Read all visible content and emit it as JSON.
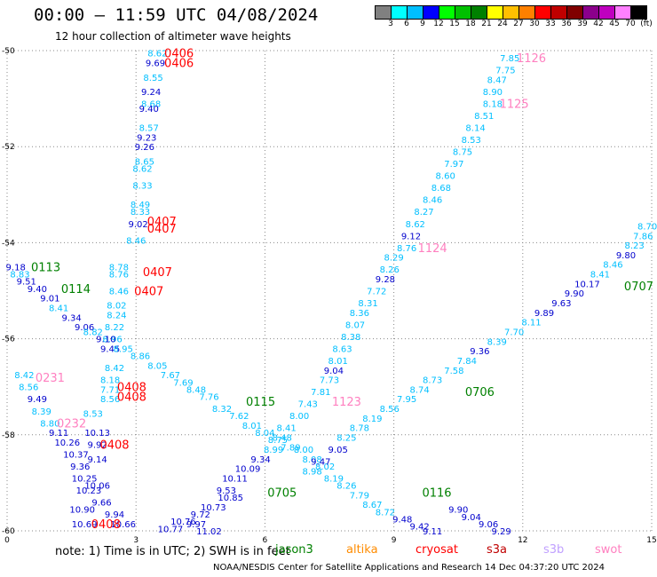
{
  "title": "00:00 – 11:59 UTC 04/08/2024",
  "subtitle": "12 hour collection of altimeter wave heights",
  "colorbar": {
    "unit_label": "(ft)",
    "ticks": [
      "3",
      "6",
      "9",
      "12",
      "15",
      "18",
      "21",
      "24",
      "27",
      "30",
      "33",
      "36",
      "39",
      "42",
      "45",
      "70"
    ],
    "colors": [
      "#808080",
      "#00ffff",
      "#00bfff",
      "#0000ff",
      "#00ff00",
      "#00c000",
      "#008000",
      "#ffff00",
      "#ffbf00",
      "#ff8000",
      "#ff0000",
      "#c00000",
      "#800000",
      "#8b008b",
      "#bf00bf",
      "#ff80ff",
      "#000000"
    ]
  },
  "footer": {
    "note": "note:  1) Time is in UTC; 2) SWH is in feet",
    "credit": "NOAA/NESDIS Center for Satellite Applications and Research    14 Dec 04:37:20 UTC 2024",
    "satellites": [
      {
        "name": "jason3",
        "color": "#008000"
      },
      {
        "name": "altika",
        "color": "#ff8c00"
      },
      {
        "name": "cryosat",
        "color": "#ff0000"
      },
      {
        "name": "s3a",
        "color": "#c00000"
      },
      {
        "name": "s3b",
        "color": "#c0a0ff"
      },
      {
        "name": "swot",
        "color": "#ff80c0"
      }
    ]
  },
  "chart_data": {
    "type": "scatter",
    "title": "00:00 – 11:59 UTC 04/08/2024",
    "subtitle": "12 hour collection of altimeter wave heights",
    "xlim": [
      0,
      15
    ],
    "ylim": [
      -60,
      -50
    ],
    "x_ticks": [
      "0",
      "3",
      "6",
      "9",
      "12",
      "15"
    ],
    "y_ticks": [
      "-50",
      "-52",
      "-54",
      "-56",
      "-58",
      "-60"
    ],
    "grid": true,
    "value_colors": {
      "low": "#0000cd",
      "high": "#00bfff"
    },
    "pass_labels": [
      {
        "text": "0406",
        "lon": 4.0,
        "lat": -50.05,
        "color": "#ff0000"
      },
      {
        "text": "0406",
        "lon": 4.0,
        "lat": -50.25,
        "color": "#ff0000"
      },
      {
        "text": "0407",
        "lon": 3.6,
        "lat": -53.55,
        "color": "#ff0000"
      },
      {
        "text": "0407",
        "lon": 3.6,
        "lat": -53.7,
        "color": "#ff0000"
      },
      {
        "text": "0407",
        "lon": 3.5,
        "lat": -54.6,
        "color": "#ff0000"
      },
      {
        "text": "0407",
        "lon": 3.3,
        "lat": -55.0,
        "color": "#ff0000"
      },
      {
        "text": "0408",
        "lon": 2.9,
        "lat": -57.0,
        "color": "#ff0000"
      },
      {
        "text": "0408",
        "lon": 2.9,
        "lat": -57.2,
        "color": "#ff0000"
      },
      {
        "text": "0408",
        "lon": 2.5,
        "lat": -58.2,
        "color": "#ff0000"
      },
      {
        "text": "0408",
        "lon": 2.3,
        "lat": -59.85,
        "color": "#ff0000"
      },
      {
        "text": "0113",
        "lon": 0.9,
        "lat": -54.5,
        "color": "#008000"
      },
      {
        "text": "0114",
        "lon": 1.6,
        "lat": -54.95,
        "color": "#008000"
      },
      {
        "text": "0115",
        "lon": 5.9,
        "lat": -57.3,
        "color": "#008000"
      },
      {
        "text": "0116",
        "lon": 10.0,
        "lat": -59.2,
        "color": "#008000"
      },
      {
        "text": "0705",
        "lon": 6.4,
        "lat": -59.2,
        "color": "#008000"
      },
      {
        "text": "0706",
        "lon": 11.0,
        "lat": -57.1,
        "color": "#008000"
      },
      {
        "text": "0707",
        "lon": 14.7,
        "lat": -54.9,
        "color": "#008000"
      },
      {
        "text": "0231",
        "lon": 1.0,
        "lat": -56.8,
        "color": "#ff80c0"
      },
      {
        "text": "0232",
        "lon": 1.5,
        "lat": -57.75,
        "color": "#ff80c0"
      },
      {
        "text": "1123",
        "lon": 7.9,
        "lat": -57.3,
        "color": "#ff80c0"
      },
      {
        "text": "1124",
        "lon": 9.9,
        "lat": -54.1,
        "color": "#ff80c0"
      },
      {
        "text": "1125",
        "lon": 11.8,
        "lat": -51.1,
        "color": "#ff80c0"
      },
      {
        "text": "1126",
        "lon": 12.2,
        "lat": -50.15,
        "color": "#ff80c0"
      }
    ],
    "points": [
      {
        "lon": 3.5,
        "lat": -50.05,
        "v": "8.62"
      },
      {
        "lon": 3.45,
        "lat": -50.25,
        "v": "9.69"
      },
      {
        "lon": 3.4,
        "lat": -50.55,
        "v": "8.55"
      },
      {
        "lon": 3.35,
        "lat": -50.85,
        "v": "9.24"
      },
      {
        "lon": 3.35,
        "lat": -51.1,
        "v": "8.68"
      },
      {
        "lon": 3.3,
        "lat": -51.2,
        "v": "9.40"
      },
      {
        "lon": 3.3,
        "lat": -51.6,
        "v": "8.57"
      },
      {
        "lon": 3.25,
        "lat": -51.8,
        "v": "9.23"
      },
      {
        "lon": 3.2,
        "lat": -52.0,
        "v": "9.26"
      },
      {
        "lon": 3.2,
        "lat": -52.3,
        "v": "8.65"
      },
      {
        "lon": 3.15,
        "lat": -52.45,
        "v": "8.62"
      },
      {
        "lon": 3.15,
        "lat": -52.8,
        "v": "8.33"
      },
      {
        "lon": 3.1,
        "lat": -53.2,
        "v": "8.49"
      },
      {
        "lon": 3.1,
        "lat": -53.35,
        "v": "8.33"
      },
      {
        "lon": 3.05,
        "lat": -53.6,
        "v": "9.02"
      },
      {
        "lon": 3.0,
        "lat": -53.95,
        "v": "8.46"
      },
      {
        "lon": 2.6,
        "lat": -54.5,
        "v": "8.78"
      },
      {
        "lon": 2.6,
        "lat": -54.65,
        "v": "8.76"
      },
      {
        "lon": 2.6,
        "lat": -55.0,
        "v": "8.46"
      },
      {
        "lon": 2.55,
        "lat": -55.3,
        "v": "8.02"
      },
      {
        "lon": 2.55,
        "lat": -55.5,
        "v": "8.24"
      },
      {
        "lon": 2.5,
        "lat": -55.75,
        "v": "8.22"
      },
      {
        "lon": 2.45,
        "lat": -56.0,
        "v": "8.96"
      },
      {
        "lon": 2.4,
        "lat": -56.2,
        "v": "9.45"
      },
      {
        "lon": 0.2,
        "lat": -54.5,
        "v": "9.18"
      },
      {
        "lon": 0.3,
        "lat": -54.65,
        "v": "8.83"
      },
      {
        "lon": 0.45,
        "lat": -54.8,
        "v": "9.51"
      },
      {
        "lon": 0.7,
        "lat": -54.95,
        "v": "9.40"
      },
      {
        "lon": 1.0,
        "lat": -55.15,
        "v": "9.01"
      },
      {
        "lon": 1.2,
        "lat": -55.35,
        "v": "8.41"
      },
      {
        "lon": 1.5,
        "lat": -55.55,
        "v": "9.34"
      },
      {
        "lon": 1.8,
        "lat": -55.75,
        "v": "9.06"
      },
      {
        "lon": 2.0,
        "lat": -55.85,
        "v": "8.82"
      },
      {
        "lon": 2.3,
        "lat": -56.0,
        "v": "9.10"
      },
      {
        "lon": 2.7,
        "lat": -56.2,
        "v": "8.95"
      },
      {
        "lon": 3.1,
        "lat": -56.35,
        "v": "8.86"
      },
      {
        "lon": 3.5,
        "lat": -56.55,
        "v": "8.05"
      },
      {
        "lon": 3.8,
        "lat": -56.75,
        "v": "7.67"
      },
      {
        "lon": 4.1,
        "lat": -56.9,
        "v": "7.69"
      },
      {
        "lon": 4.4,
        "lat": -57.05,
        "v": "8.48"
      },
      {
        "lon": 4.7,
        "lat": -57.2,
        "v": "7.76"
      },
      {
        "lon": 5.0,
        "lat": -57.45,
        "v": "8.32"
      },
      {
        "lon": 5.4,
        "lat": -57.6,
        "v": "7.62"
      },
      {
        "lon": 5.7,
        "lat": -57.8,
        "v": "8.01"
      },
      {
        "lon": 6.0,
        "lat": -57.95,
        "v": "8.04"
      },
      {
        "lon": 6.3,
        "lat": -58.1,
        "v": "8.75"
      },
      {
        "lon": 6.6,
        "lat": -58.25,
        "v": "7.89"
      },
      {
        "lon": 6.9,
        "lat": -58.3,
        "v": "8.00"
      },
      {
        "lon": 7.1,
        "lat": -58.5,
        "v": "8.08"
      },
      {
        "lon": 7.4,
        "lat": -58.65,
        "v": "8.02"
      },
      {
        "lon": 7.6,
        "lat": -58.9,
        "v": "8.19"
      },
      {
        "lon": 7.9,
        "lat": -59.05,
        "v": "8.26"
      },
      {
        "lon": 8.2,
        "lat": -59.25,
        "v": "7.79"
      },
      {
        "lon": 8.5,
        "lat": -59.45,
        "v": "8.67"
      },
      {
        "lon": 8.8,
        "lat": -59.6,
        "v": "8.72"
      },
      {
        "lon": 9.2,
        "lat": -59.75,
        "v": "9.48"
      },
      {
        "lon": 9.6,
        "lat": -59.9,
        "v": "9.42"
      },
      {
        "lon": 9.9,
        "lat": -60.0,
        "v": "9.11"
      },
      {
        "lon": 0.4,
        "lat": -56.75,
        "v": "8.42"
      },
      {
        "lon": 0.5,
        "lat": -57.0,
        "v": "8.56"
      },
      {
        "lon": 0.7,
        "lat": -57.25,
        "v": "9.49"
      },
      {
        "lon": 0.8,
        "lat": -57.5,
        "v": "8.39"
      },
      {
        "lon": 1.0,
        "lat": -57.75,
        "v": "8.80"
      },
      {
        "lon": 1.2,
        "lat": -57.95,
        "v": "9.11"
      },
      {
        "lon": 1.4,
        "lat": -58.15,
        "v": "10.26"
      },
      {
        "lon": 1.6,
        "lat": -58.4,
        "v": "10.37"
      },
      {
        "lon": 1.7,
        "lat": -58.65,
        "v": "9.36"
      },
      {
        "lon": 1.8,
        "lat": -58.9,
        "v": "10.25"
      },
      {
        "lon": 1.9,
        "lat": -59.15,
        "v": "10.23"
      },
      {
        "lon": 1.75,
        "lat": -59.55,
        "v": "10.90"
      },
      {
        "lon": 1.8,
        "lat": -59.85,
        "v": "10.69"
      },
      {
        "lon": 2.0,
        "lat": -57.55,
        "v": "8.53"
      },
      {
        "lon": 2.1,
        "lat": -57.95,
        "v": "10.13"
      },
      {
        "lon": 2.1,
        "lat": -58.2,
        "v": "9.92"
      },
      {
        "lon": 2.1,
        "lat": -58.5,
        "v": "9.14"
      },
      {
        "lon": 2.1,
        "lat": -59.05,
        "v": "10.06"
      },
      {
        "lon": 2.2,
        "lat": -59.4,
        "v": "9.66"
      },
      {
        "lon": 2.5,
        "lat": -59.65,
        "v": "9.94"
      },
      {
        "lon": 2.7,
        "lat": -59.85,
        "v": "10.66"
      },
      {
        "lon": 2.5,
        "lat": -56.6,
        "v": "8.42"
      },
      {
        "lon": 2.4,
        "lat": -56.85,
        "v": "8.18"
      },
      {
        "lon": 2.4,
        "lat": -57.05,
        "v": "7.71"
      },
      {
        "lon": 2.4,
        "lat": -57.25,
        "v": "8.56"
      },
      {
        "lon": 3.8,
        "lat": -59.95,
        "v": "10.77"
      },
      {
        "lon": 4.1,
        "lat": -59.8,
        "v": "10.76"
      },
      {
        "lon": 4.5,
        "lat": -59.65,
        "v": "9.72"
      },
      {
        "lon": 4.8,
        "lat": -59.5,
        "v": "10.73"
      },
      {
        "lon": 5.2,
        "lat": -59.3,
        "v": "10.85"
      },
      {
        "lon": 5.1,
        "lat": -59.15,
        "v": "9.53"
      },
      {
        "lon": 5.3,
        "lat": -58.9,
        "v": "10.11"
      },
      {
        "lon": 5.6,
        "lat": -58.7,
        "v": "10.09"
      },
      {
        "lon": 5.9,
        "lat": -58.5,
        "v": "9.34"
      },
      {
        "lon": 6.2,
        "lat": -58.3,
        "v": "8.99"
      },
      {
        "lon": 6.4,
        "lat": -58.05,
        "v": "8.48"
      },
      {
        "lon": 6.5,
        "lat": -57.85,
        "v": "8.41"
      },
      {
        "lon": 6.8,
        "lat": -57.6,
        "v": "8.00"
      },
      {
        "lon": 7.0,
        "lat": -57.35,
        "v": "7.43"
      },
      {
        "lon": 7.3,
        "lat": -57.1,
        "v": "7.81"
      },
      {
        "lon": 7.5,
        "lat": -56.85,
        "v": "7.73"
      },
      {
        "lon": 7.6,
        "lat": -56.65,
        "v": "9.04"
      },
      {
        "lon": 7.7,
        "lat": -56.45,
        "v": "8.01"
      },
      {
        "lon": 7.8,
        "lat": -56.2,
        "v": "8.63"
      },
      {
        "lon": 8.0,
        "lat": -55.95,
        "v": "8.38"
      },
      {
        "lon": 8.1,
        "lat": -55.7,
        "v": "8.07"
      },
      {
        "lon": 8.2,
        "lat": -55.45,
        "v": "8.36"
      },
      {
        "lon": 8.4,
        "lat": -55.25,
        "v": "8.31"
      },
      {
        "lon": 8.6,
        "lat": -55.0,
        "v": "7.72"
      },
      {
        "lon": 8.8,
        "lat": -54.75,
        "v": "9.28"
      },
      {
        "lon": 8.9,
        "lat": -54.55,
        "v": "8.26"
      },
      {
        "lon": 9.0,
        "lat": -54.3,
        "v": "8.29"
      },
      {
        "lon": 9.3,
        "lat": -54.1,
        "v": "8.76"
      },
      {
        "lon": 9.4,
        "lat": -53.85,
        "v": "9.12"
      },
      {
        "lon": 9.5,
        "lat": -53.6,
        "v": "8.62"
      },
      {
        "lon": 9.7,
        "lat": -53.35,
        "v": "8.27"
      },
      {
        "lon": 9.9,
        "lat": -53.1,
        "v": "8.46"
      },
      {
        "lon": 10.1,
        "lat": -52.85,
        "v": "8.68"
      },
      {
        "lon": 10.2,
        "lat": -52.6,
        "v": "8.60"
      },
      {
        "lon": 10.4,
        "lat": -52.35,
        "v": "7.97"
      },
      {
        "lon": 10.6,
        "lat": -52.1,
        "v": "8.75"
      },
      {
        "lon": 10.8,
        "lat": -51.85,
        "v": "8.53"
      },
      {
        "lon": 10.9,
        "lat": -51.6,
        "v": "8.14"
      },
      {
        "lon": 11.1,
        "lat": -51.35,
        "v": "8.51"
      },
      {
        "lon": 11.3,
        "lat": -51.1,
        "v": "8.18"
      },
      {
        "lon": 11.3,
        "lat": -50.85,
        "v": "8.90"
      },
      {
        "lon": 11.4,
        "lat": -50.6,
        "v": "8.47"
      },
      {
        "lon": 11.6,
        "lat": -50.4,
        "v": "7.75"
      },
      {
        "lon": 11.7,
        "lat": -50.15,
        "v": "7.85"
      },
      {
        "lon": 7.1,
        "lat": -58.75,
        "v": "8.98"
      },
      {
        "lon": 7.3,
        "lat": -58.55,
        "v": "9.47"
      },
      {
        "lon": 7.7,
        "lat": -58.3,
        "v": "9.05"
      },
      {
        "lon": 7.9,
        "lat": -58.05,
        "v": "8.25"
      },
      {
        "lon": 8.2,
        "lat": -57.85,
        "v": "8.78"
      },
      {
        "lon": 8.5,
        "lat": -57.65,
        "v": "8.19"
      },
      {
        "lon": 8.9,
        "lat": -57.45,
        "v": "8.56"
      },
      {
        "lon": 9.3,
        "lat": -57.25,
        "v": "7.95"
      },
      {
        "lon": 9.6,
        "lat": -57.05,
        "v": "8.74"
      },
      {
        "lon": 9.9,
        "lat": -56.85,
        "v": "8.73"
      },
      {
        "lon": 10.4,
        "lat": -56.65,
        "v": "7.58"
      },
      {
        "lon": 10.7,
        "lat": -56.45,
        "v": "7.84"
      },
      {
        "lon": 11.0,
        "lat": -56.25,
        "v": "9.36"
      },
      {
        "lon": 11.4,
        "lat": -56.05,
        "v": "8.39"
      },
      {
        "lon": 11.8,
        "lat": -55.85,
        "v": "7.70"
      },
      {
        "lon": 12.2,
        "lat": -55.65,
        "v": "8.11"
      },
      {
        "lon": 12.5,
        "lat": -55.45,
        "v": "9.89"
      },
      {
        "lon": 12.9,
        "lat": -55.25,
        "v": "9.63"
      },
      {
        "lon": 13.2,
        "lat": -55.05,
        "v": "9.90"
      },
      {
        "lon": 13.5,
        "lat": -54.85,
        "v": "10.17"
      },
      {
        "lon": 13.8,
        "lat": -54.65,
        "v": "8.41"
      },
      {
        "lon": 14.1,
        "lat": -54.45,
        "v": "8.46"
      },
      {
        "lon": 14.4,
        "lat": -54.25,
        "v": "9.80"
      },
      {
        "lon": 14.6,
        "lat": -54.05,
        "v": "8.23"
      },
      {
        "lon": 14.8,
        "lat": -53.85,
        "v": "7.86"
      },
      {
        "lon": 14.9,
        "lat": -53.65,
        "v": "8.70"
      },
      {
        "lon": 10.5,
        "lat": -59.55,
        "v": "9.90"
      },
      {
        "lon": 10.8,
        "lat": -59.7,
        "v": "9.04"
      },
      {
        "lon": 11.2,
        "lat": -59.85,
        "v": "9.06"
      },
      {
        "lon": 11.5,
        "lat": -60.0,
        "v": "9.29"
      },
      {
        "lon": 4.7,
        "lat": -60.0,
        "v": "11.02"
      },
      {
        "lon": 4.4,
        "lat": -59.85,
        "v": "9.97"
      }
    ]
  }
}
